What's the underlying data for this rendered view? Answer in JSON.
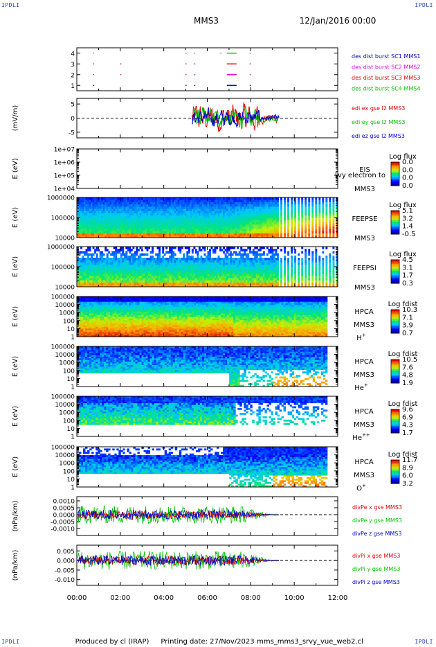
{
  "corner_tag": "IPDLI",
  "header": {
    "spacecraft": "MMS3",
    "date": "12/Jan/2016 00:00"
  },
  "footer": {
    "produced_by": "Produced by cl (IRAP)",
    "printing_date": "Printing date: 27/Nov/2023",
    "filename": "mms_mms3_srvy_vue_web2.cl"
  },
  "colors": {
    "red": "#e00000",
    "green": "#00c000",
    "blue": "#0000d0",
    "magenta": "#e000e0",
    "black": "#000000"
  },
  "chart_data": [
    {
      "type": "scatter",
      "panel": "burst-availability",
      "ylim": [
        0.5,
        4.5
      ],
      "yticks": [
        "1",
        "2",
        "3",
        "4"
      ],
      "legend": [
        "des dist burst SC1 MMS1",
        "des dist burst SC2 MMS2",
        "des dist burst SC3 MMS3",
        "des dist burst SC4 MMS4"
      ],
      "series": [
        {
          "name": "des dist burst SC1 MMS1",
          "level": 1,
          "intervals": [
            [
              0.75,
              0.78
            ],
            [
              5.0,
              5.02
            ],
            [
              5.4,
              5.45
            ],
            [
              6.9,
              7.35
            ],
            [
              7.95,
              7.98
            ]
          ]
        },
        {
          "name": "des dist burst SC2 MMS2",
          "level": 2,
          "intervals": [
            [
              0.75,
              0.78
            ],
            [
              2.0,
              2.02
            ],
            [
              5.0,
              5.02
            ],
            [
              5.4,
              5.45
            ],
            [
              6.9,
              7.35
            ],
            [
              7.95,
              7.98
            ]
          ]
        },
        {
          "name": "des dist burst SC3 MMS3",
          "level": 3,
          "intervals": [
            [
              0.75,
              0.78
            ],
            [
              2.0,
              2.02
            ],
            [
              5.0,
              5.02
            ],
            [
              5.4,
              5.45
            ],
            [
              6.9,
              7.35
            ],
            [
              7.95,
              7.98
            ]
          ]
        },
        {
          "name": "des dist burst SC4 MMS4",
          "level": 4,
          "intervals": [
            [
              0.75,
              0.78
            ],
            [
              5.0,
              5.02
            ],
            [
              5.4,
              5.45
            ],
            [
              6.6,
              6.65
            ],
            [
              6.9,
              7.35
            ],
            [
              7.95,
              7.98
            ]
          ]
        }
      ]
    },
    {
      "type": "line",
      "panel": "edi-electric-field",
      "ylabel": "(mV/m)",
      "ylim": [
        -7,
        7
      ],
      "yticks": [
        "-5",
        "0",
        "5"
      ],
      "legend": [
        "edi ex gse l2 MMS3",
        "edi ey gse l2 MMS3",
        "edi ez gse l2 MMS3"
      ],
      "x_range_data": [
        5.3,
        9.3
      ],
      "series": [
        {
          "name": "edi ex gse l2 MMS3",
          "amplitude": 4.5
        },
        {
          "name": "edi ey gse l2 MMS3",
          "amplitude": 3.0
        },
        {
          "name": "edi ez gse l2 MMS3",
          "amplitude": 2.5
        }
      ]
    },
    {
      "type": "heatmap",
      "panel": "EIS",
      "ylabel": "E (eV)",
      "yticks": [
        "1e+04",
        "1e+05",
        "1e+06",
        "1e+07"
      ],
      "labels": [
        "EIS",
        "MMS3"
      ],
      "overlay": "[vy electron to",
      "colorbar": {
        "title": "Log flux",
        "ticks": [
          "0.0",
          "0.0",
          "0.0",
          "0.0"
        ]
      }
    },
    {
      "type": "heatmap",
      "panel": "FEEPSE",
      "ylabel": "E (eV)",
      "yticks": [
        "10000",
        "100000",
        "1000000"
      ],
      "labels": [
        "FEEPSE",
        "MMS3"
      ],
      "colorbar": {
        "title": "Log flux",
        "ticks": [
          "5.1",
          "3.2",
          "1.4",
          "-0.5"
        ]
      }
    },
    {
      "type": "heatmap",
      "panel": "FEEPSI",
      "ylabel": "E (eV)",
      "yticks": [
        "10000",
        "100000",
        "1000000"
      ],
      "labels": [
        "FEEPSI",
        "MMS3"
      ],
      "colorbar": {
        "title": "Log flux",
        "ticks": [
          "4.5",
          "3.1",
          "1.7",
          "0.3"
        ]
      }
    },
    {
      "type": "heatmap",
      "panel": "HPCA-H+",
      "ylabel": "E (eV)",
      "yticks": [
        "1",
        "10",
        "100",
        "1000",
        "10000",
        "100000"
      ],
      "labels": [
        "HPCA",
        "MMS3"
      ],
      "species": "H",
      "species_charge": "+",
      "colorbar": {
        "title": "Log fdist",
        "ticks": [
          "10.3",
          "7.1",
          "3.9",
          "0.7"
        ]
      }
    },
    {
      "type": "heatmap",
      "panel": "HPCA-He+",
      "ylabel": "E (eV)",
      "yticks": [
        "1",
        "10",
        "100",
        "1000",
        "10000",
        "100000"
      ],
      "labels": [
        "HPCA",
        "MMS3"
      ],
      "species": "He",
      "species_charge": "+",
      "colorbar": {
        "title": "Log fdist",
        "ticks": [
          "10.5",
          "7.6",
          "4.8",
          "1.9"
        ]
      }
    },
    {
      "type": "heatmap",
      "panel": "HPCA-He++",
      "ylabel": "E (eV)",
      "yticks": [
        "1",
        "10",
        "100",
        "1000",
        "10000",
        "100000"
      ],
      "labels": [
        "HPCA",
        "MMS3"
      ],
      "species": "He",
      "species_charge": "++",
      "colorbar": {
        "title": "Log fdist",
        "ticks": [
          "9.6",
          "6.9",
          "4.3",
          "1.7"
        ]
      }
    },
    {
      "type": "heatmap",
      "panel": "HPCA-O+",
      "ylabel": "E (eV)",
      "yticks": [
        "1",
        "10",
        "100",
        "1000",
        "10000",
        "100000"
      ],
      "labels": [
        "HPCA",
        "MMS3"
      ],
      "species": "O",
      "species_charge": "+",
      "colorbar": {
        "title": "Log fdist",
        "ticks": [
          "11.7",
          "8.9",
          "6.0",
          "3.2"
        ]
      }
    },
    {
      "type": "line",
      "panel": "divPe",
      "ylabel": "(nPa/km)",
      "ylim": [
        -0.0015,
        0.0013
      ],
      "yticks": [
        "-0.0010",
        "-0.0005",
        "0.0000",
        "0.0005",
        "0.0010"
      ],
      "tick_values": [
        -0.001,
        -0.0005,
        0,
        0.0005,
        0.001
      ],
      "legend": [
        "divPe x gse MMS3",
        "divPe y gse MMS3",
        "divPe z gse MMS3"
      ],
      "x_range_data": [
        0.0,
        9.3
      ]
    },
    {
      "type": "line",
      "panel": "divPi",
      "ylabel": "(nPa/km)",
      "ylim": [
        -0.013,
        0.008
      ],
      "yticks": [
        "-0.010",
        "-0.005",
        "0.000",
        "0.005"
      ],
      "tick_values": [
        -0.01,
        -0.005,
        0,
        0.005
      ],
      "legend": [
        "divPi x gse MMS3",
        "divPi y gse MMS3",
        "divPi z gse MMS3"
      ],
      "x_range_data": [
        0.0,
        9.3
      ]
    }
  ],
  "time_axis": {
    "xlim": [
      0,
      12
    ],
    "ticks": [
      "00:00",
      "02:00",
      "04:00",
      "06:00",
      "08:00",
      "10:00",
      "12:00"
    ]
  }
}
